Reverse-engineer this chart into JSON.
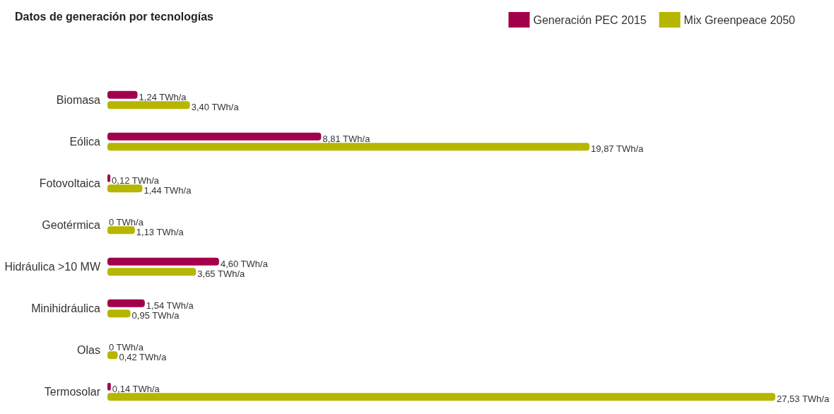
{
  "chart_data": {
    "type": "bar",
    "orientation": "horizontal",
    "title": "Datos de generación por tecnologías",
    "legend": "top right",
    "categories": [
      "Biomasa",
      "Eólica",
      "Fotovoltaica",
      "Geotérmica",
      "Hidráulica >10 MW",
      "Minihidráulica",
      "Olas",
      "Termosolar"
    ],
    "series": [
      {
        "name": "Generación PEC 2015",
        "color": "#a3004c",
        "values": [
          1.24,
          8.81,
          0.12,
          0,
          4.6,
          1.54,
          0,
          0.14
        ],
        "value_labels": [
          "1,24 TWh/a",
          "8,81 TWh/a",
          "0,12 TWh/a",
          "0 TWh/a",
          "4,60 TWh/a",
          "1,54 TWh/a",
          "0 TWh/a",
          "0,14 TWh/a"
        ]
      },
      {
        "name": "Mix Greenpeace 2050",
        "color": "#b6b600",
        "values": [
          3.4,
          19.87,
          1.44,
          1.13,
          3.65,
          0.95,
          0.42,
          27.53
        ],
        "value_labels": [
          "3,40 TWh/a",
          "19,87 TWh/a",
          "1,44 TWh/a",
          "1,13 TWh/a",
          "3,65 TWh/a",
          "0,95 TWh/a",
          "0,42 TWh/a",
          "27,53 TWh/a"
        ]
      }
    ]
  }
}
